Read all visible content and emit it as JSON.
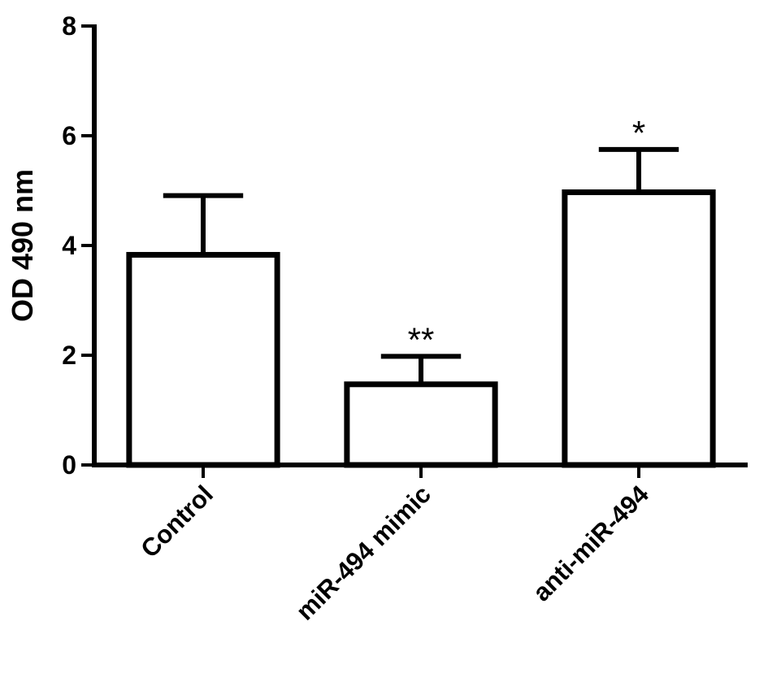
{
  "chart_data": {
    "type": "bar",
    "title": "",
    "xlabel": "",
    "ylabel": "OD 490 nm",
    "ylim": [
      0,
      8
    ],
    "yticks": [
      "0",
      "2",
      "4",
      "6",
      "8"
    ],
    "categories": [
      "Control",
      "miR-494 mimic",
      "anti-miR-494"
    ],
    "values": [
      3.83,
      1.47,
      4.97
    ],
    "errors": [
      1.08,
      0.51,
      0.78
    ],
    "significance": [
      "",
      "**",
      "*"
    ],
    "bar_fill": "#ffffff",
    "stroke_color": "#000000",
    "grid": false,
    "legend": "none"
  }
}
